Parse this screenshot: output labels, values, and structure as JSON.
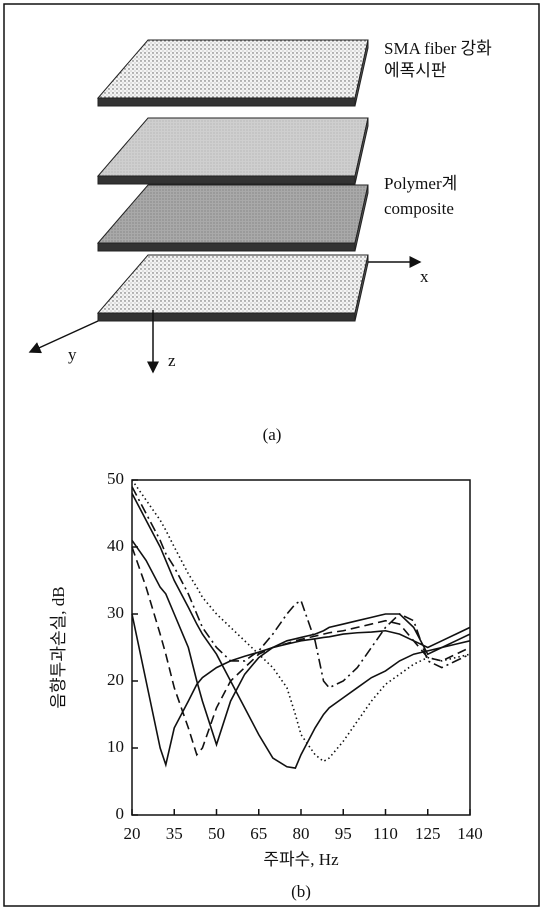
{
  "diagram": {
    "layer1": [
      "SMA fiber 강화",
      "에폭시판"
    ],
    "layer2": [
      "Polymer계",
      "composite"
    ],
    "axes": [
      "x",
      "y",
      "z"
    ],
    "caption": "(a)"
  },
  "chart_data": {
    "type": "line",
    "caption": "(b)",
    "x_label": "주파수, Hz",
    "y_label": "음향투과손실, dB",
    "xlim": [
      20,
      140
    ],
    "xticks": [
      20,
      35,
      50,
      65,
      80,
      95,
      110,
      125,
      140
    ],
    "ylim": [
      0,
      50
    ],
    "yticks": [
      0,
      10,
      20,
      30,
      40,
      50
    ],
    "x": [
      20,
      25,
      30,
      32,
      35,
      40,
      43,
      45,
      50,
      55,
      60,
      65,
      70,
      75,
      78,
      80,
      85,
      88,
      90,
      95,
      100,
      105,
      110,
      115,
      120,
      125,
      130,
      135,
      140
    ],
    "series": [
      {
        "color": "#111111",
        "style": "solid",
        "values": [
          30,
          20,
          10,
          7.5,
          13,
          17,
          19.5,
          20.5,
          22,
          23,
          23.7,
          24.3,
          25,
          25.5,
          25.8,
          26,
          26.3,
          26.5,
          26.6,
          27,
          27.2,
          27.3,
          27.5,
          27,
          26,
          25,
          26,
          27,
          28
        ]
      },
      {
        "color": "#111111",
        "style": "dashed",
        "values": [
          40,
          34,
          27,
          24,
          19,
          13,
          9,
          10,
          16,
          20,
          22,
          24,
          25,
          25.6,
          26,
          26.2,
          26.7,
          27,
          27.2,
          27.5,
          28,
          28.5,
          29,
          28.5,
          26,
          23.5,
          23,
          24,
          25
        ]
      },
      {
        "color": "#111111",
        "style": "solid",
        "values": [
          41,
          38,
          34,
          33,
          30,
          25,
          20,
          17,
          10.5,
          17,
          21,
          23.5,
          25,
          26,
          26.3,
          26.5,
          27,
          27.5,
          28,
          28.5,
          29,
          29.5,
          30,
          30,
          28,
          24,
          25,
          26,
          27
        ]
      },
      {
        "color": "#111111",
        "style": "dashdot",
        "values": [
          49,
          45,
          41,
          39,
          37,
          33,
          30,
          28,
          25,
          23,
          23,
          24.5,
          27,
          30,
          31.5,
          32,
          26,
          20,
          19,
          20,
          22,
          25,
          28,
          30,
          29,
          23,
          22,
          23,
          24
        ]
      },
      {
        "color": "#111111",
        "style": "solid",
        "values": [
          48,
          44,
          40,
          38,
          35,
          31,
          28.5,
          27,
          24,
          20,
          16,
          12,
          8.5,
          7.2,
          7,
          9,
          13,
          15,
          16,
          17.5,
          19,
          20.5,
          21.5,
          23,
          24,
          24.5,
          25,
          25.5,
          26
        ]
      },
      {
        "color": "#111111",
        "style": "dotted",
        "values": [
          50,
          47,
          44,
          42.5,
          40,
          36,
          34,
          32.5,
          30,
          28,
          26,
          24,
          22,
          19,
          15,
          12,
          9,
          8,
          8.5,
          11,
          14,
          17,
          19.5,
          21,
          22.5,
          23.5,
          23,
          23.5,
          24
        ]
      }
    ]
  }
}
